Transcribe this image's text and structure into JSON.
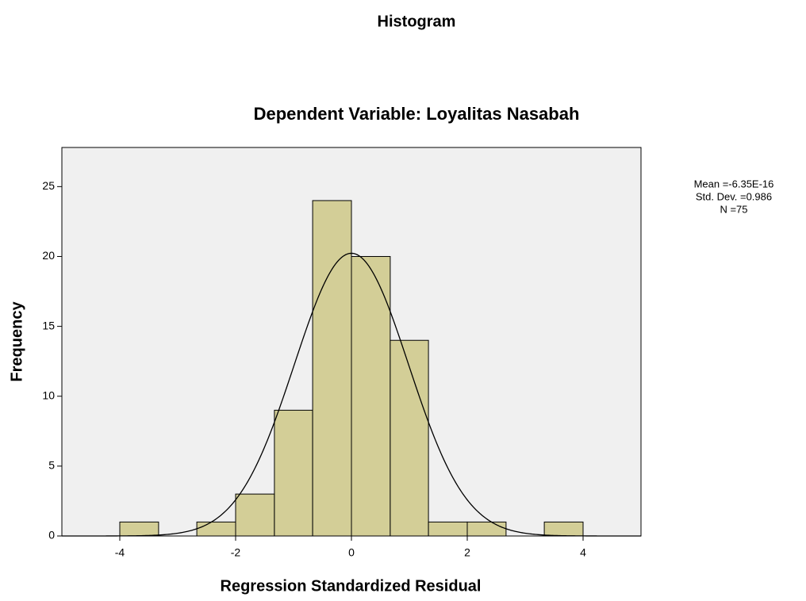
{
  "chart_data": {
    "type": "histogram",
    "title": "Histogram",
    "subtitle": "Dependent Variable: Loyalitas Nasabah",
    "x_label": "Regression Standardized Residual",
    "y_label": "Frequency",
    "bins": [
      -4,
      -3.33,
      -2.67,
      -2,
      -1.33,
      -0.67,
      0,
      0.67,
      1.33,
      2,
      2.67,
      3.33,
      4
    ],
    "values": [
      1,
      0,
      1,
      3,
      9,
      24,
      20,
      14,
      1,
      1,
      0,
      1
    ],
    "color": "#d3ce97",
    "xlim": [
      -5,
      5
    ],
    "ylim": [
      0,
      27.8
    ],
    "xticks": [
      -4,
      -2,
      0,
      2,
      4
    ],
    "yticks": [
      0,
      5,
      10,
      15,
      20,
      25
    ],
    "stats": [
      {
        "value": -6.35e-16,
        "label": "Mean =-6.35E-16"
      },
      {
        "value": 0.986,
        "label": "Std. Dev. =0.986"
      },
      {
        "value": 75,
        "label": "N =75"
      }
    ]
  }
}
